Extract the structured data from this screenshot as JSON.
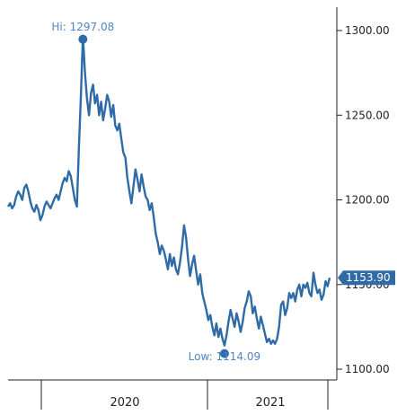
{
  "chart_data": {
    "type": "line",
    "title": "",
    "xlabel": "",
    "ylabel": "",
    "ylim": [
      1100,
      1300
    ],
    "y_ticks": [
      1100.0,
      1150.0,
      1200.0,
      1250.0,
      1300.0
    ],
    "y_tick_labels": [
      "1100.00",
      "1150.00",
      "1200.00",
      "1250.00",
      "1300.00"
    ],
    "y_axis_side": "right",
    "x_tick_labels": [
      "2020",
      "2021"
    ],
    "grid": false,
    "legend": "none",
    "colors": {
      "line": "#2f6ba6",
      "text": "#4f86c6",
      "axis": "#222222"
    },
    "high_label": "Hi: 1297.08",
    "low_label": "Low: 1114.09",
    "last_value_label": "1153.90",
    "series": [
      {
        "values": [
          1196,
          1198,
          1195,
          1197,
          1202,
          1205,
          1203,
          1200,
          1207,
          1209,
          1205,
          1199,
          1195,
          1193,
          1197,
          1194,
          1188,
          1191,
          1196,
          1199,
          1197,
          1195,
          1198,
          1201,
          1203,
          1200,
          1205,
          1210,
          1213,
          1211,
          1217,
          1214,
          1207,
          1200,
          1196,
          1230,
          1262,
          1297,
          1275,
          1260,
          1250,
          1263,
          1268,
          1257,
          1262,
          1250,
          1258,
          1247,
          1254,
          1262,
          1258,
          1249,
          1256,
          1244,
          1241,
          1245,
          1236,
          1228,
          1225,
          1213,
          1205,
          1198,
          1208,
          1218,
          1212,
          1205,
          1215,
          1208,
          1202,
          1200,
          1194,
          1198,
          1190,
          1180,
          1175,
          1168,
          1173,
          1170,
          1165,
          1159,
          1168,
          1161,
          1166,
          1159,
          1156,
          1163,
          1172,
          1185,
          1178,
          1165,
          1155,
          1162,
          1167,
          1158,
          1150,
          1156,
          1145,
          1140,
          1135,
          1129,
          1132,
          1125,
          1120,
          1127,
          1119,
          1124,
          1118,
          1114,
          1120,
          1128,
          1135,
          1130,
          1125,
          1133,
          1128,
          1122,
          1128,
          1136,
          1140,
          1146,
          1143,
          1133,
          1137,
          1130,
          1124,
          1131,
          1126,
          1121,
          1116,
          1118,
          1115,
          1117,
          1115,
          1118,
          1125,
          1138,
          1140,
          1132,
          1136,
          1145,
          1142,
          1145,
          1140,
          1147,
          1150,
          1143,
          1150,
          1148,
          1151,
          1145,
          1143,
          1157,
          1150,
          1145,
          1147,
          1141,
          1144,
          1152,
          1149,
          1154
        ]
      }
    ],
    "high_index": 37,
    "low_index": 107
  }
}
